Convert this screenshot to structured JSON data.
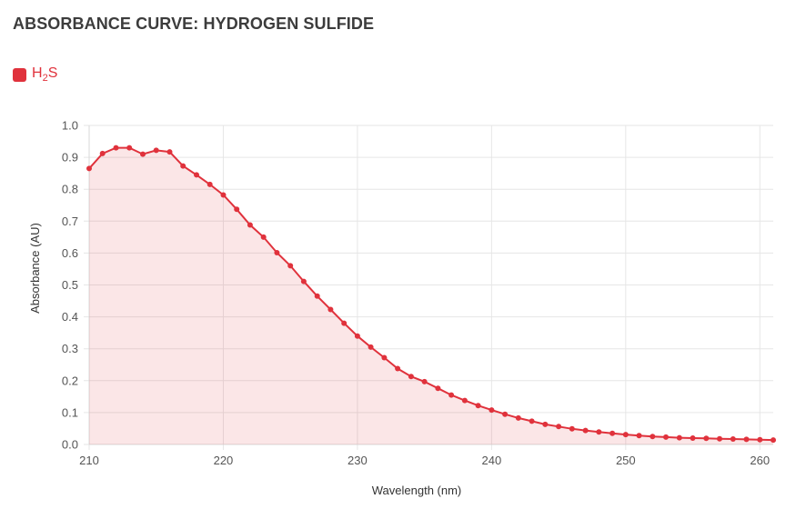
{
  "colors": {
    "line": "#e0323c",
    "fill": "rgba(224,50,60,0.12)",
    "grid": "#e6e6e6"
  },
  "chart_data": {
    "type": "line",
    "title": "ABSORBANCE CURVE: HYDROGEN SULFIDE",
    "legend": {
      "label_main": "H",
      "label_sub": "2",
      "label_tail": "S",
      "placement": "top-left"
    },
    "xlabel": "Wavelength (nm)",
    "ylabel": "Absorbance (AU)",
    "xlim": [
      210,
      261
    ],
    "ylim": [
      0,
      1.0
    ],
    "xticks": [
      "210",
      "220",
      "230",
      "240",
      "250",
      "260"
    ],
    "yticks": [
      "0.0",
      "0.1",
      "0.2",
      "0.3",
      "0.4",
      "0.5",
      "0.6",
      "0.7",
      "0.8",
      "0.9",
      "1.0"
    ],
    "grid": true,
    "filled": true,
    "series": [
      {
        "x": [
          210,
          211,
          212,
          213,
          214,
          215,
          216,
          217,
          218,
          219,
          220,
          221,
          222,
          223,
          224,
          225,
          226,
          227,
          228,
          229,
          230,
          231,
          232,
          233,
          234,
          235,
          236,
          237,
          238,
          239,
          240,
          241,
          242,
          243,
          244,
          245,
          246,
          247,
          248,
          249,
          250,
          251,
          252,
          253,
          254,
          255,
          256,
          257,
          258,
          259,
          260,
          261
        ],
        "y": [
          0.865,
          0.912,
          0.93,
          0.93,
          0.91,
          0.922,
          0.917,
          0.873,
          0.845,
          0.815,
          0.782,
          0.737,
          0.688,
          0.65,
          0.601,
          0.56,
          0.511,
          0.465,
          0.423,
          0.38,
          0.34,
          0.305,
          0.272,
          0.238,
          0.213,
          0.197,
          0.176,
          0.155,
          0.138,
          0.122,
          0.108,
          0.095,
          0.083,
          0.073,
          0.063,
          0.056,
          0.049,
          0.044,
          0.039,
          0.035,
          0.031,
          0.028,
          0.025,
          0.023,
          0.021,
          0.02,
          0.019,
          0.018,
          0.017,
          0.016,
          0.015,
          0.014
        ]
      }
    ]
  }
}
